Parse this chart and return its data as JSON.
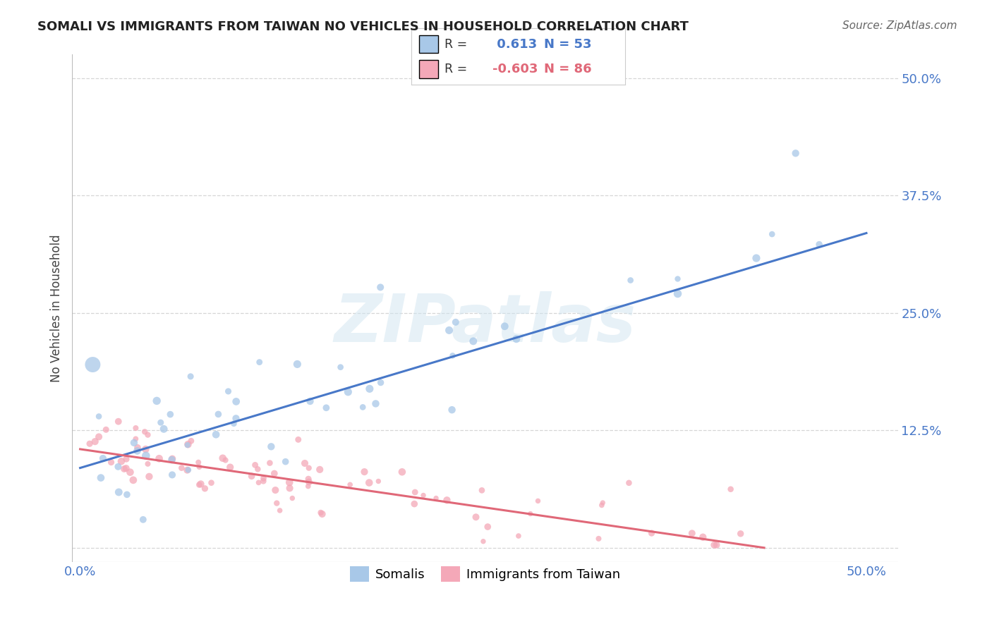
{
  "title": "SOMALI VS IMMIGRANTS FROM TAIWAN NO VEHICLES IN HOUSEHOLD CORRELATION CHART",
  "source": "Source: ZipAtlas.com",
  "ylabel": "No Vehicles in Household",
  "ytick_positions": [
    0.0,
    0.125,
    0.25,
    0.375,
    0.5
  ],
  "ytick_labels_right": [
    "",
    "12.5%",
    "25.0%",
    "37.5%",
    "50.0%"
  ],
  "xtick_positions": [
    0.0,
    0.125,
    0.25,
    0.375,
    0.5
  ],
  "xtick_labels": [
    "0.0%",
    "",
    "",
    "",
    "50.0%"
  ],
  "blue_R": 0.613,
  "blue_N": 53,
  "pink_R": -0.603,
  "pink_N": 86,
  "blue_color": "#a8c8e8",
  "pink_color": "#f4a8b8",
  "blue_line_color": "#4878c8",
  "pink_line_color": "#e06878",
  "legend_blue_label": "Somalis",
  "legend_pink_label": "Immigrants from Taiwan",
  "watermark_text": "ZIPatlas",
  "background_color": "#ffffff",
  "grid_color": "#cccccc",
  "title_color": "#222222",
  "source_color": "#666666",
  "tick_label_color": "#4878c8",
  "ylabel_color": "#444444",
  "blue_line_x": [
    0.0,
    0.5
  ],
  "blue_line_y": [
    0.085,
    0.335
  ],
  "pink_line_x": [
    0.0,
    0.435
  ],
  "pink_line_y": [
    0.105,
    0.0
  ],
  "xlim": [
    -0.005,
    0.52
  ],
  "ylim": [
    -0.015,
    0.525
  ]
}
